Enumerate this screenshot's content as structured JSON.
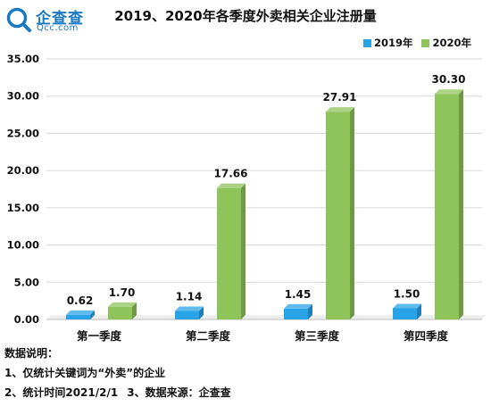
{
  "logo": {
    "name": "企查查",
    "url": "Qcc.com",
    "icon": "search-magnifier-icon",
    "color": "#1a78c2"
  },
  "chart_data": {
    "type": "bar",
    "title": "2019、2020年各季度外卖相关企业注册量",
    "categories": [
      "第一季度",
      "第二季度",
      "第三季度",
      "第四季度"
    ],
    "series": [
      {
        "name": "2019年",
        "values": [
          0.62,
          1.14,
          1.45,
          1.5
        ],
        "color": "#29a3e8"
      },
      {
        "name": "2020年",
        "values": [
          1.7,
          17.66,
          27.91,
          30.3
        ],
        "color": "#8fc45a"
      }
    ],
    "value_labels": [
      [
        "0.62",
        "1.14",
        "1.45",
        "1.50"
      ],
      [
        "1.70",
        "17.66",
        "27.91",
        "30.30"
      ]
    ],
    "yticks": [
      "0.00",
      "5.00",
      "10.00",
      "15.00",
      "20.00",
      "25.00",
      "30.00",
      "35.00"
    ],
    "ylim": [
      0,
      35
    ],
    "xlabel": "",
    "ylabel": "",
    "grid": true,
    "legend": "top-right",
    "style": "3d-columns"
  },
  "notes": {
    "heading": "数据说明：",
    "line1": "1、仅统计关键词为“外卖”的企业",
    "line2a": "2、统计时间2021/2/1",
    "line2b": "3、数据来源：企查查"
  }
}
